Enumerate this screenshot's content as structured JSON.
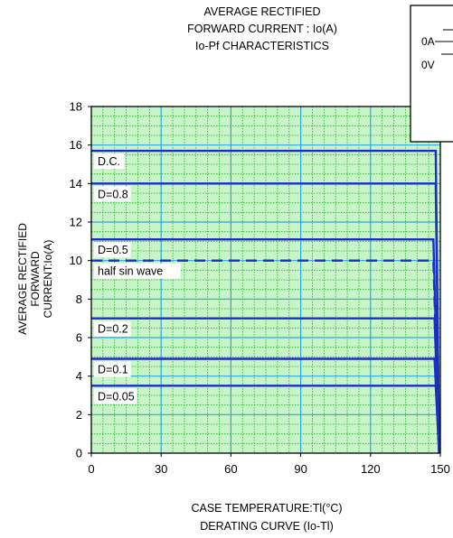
{
  "title": {
    "lines": [
      "AVERAGE RECTIFIED",
      "FORWARD CURRENT : Io(A)",
      "Io-Pf CHARACTERISTICS"
    ]
  },
  "inset": {
    "labels": [
      "0A",
      "0V"
    ]
  },
  "chart_data": {
    "type": "line",
    "xlabel": "CASE TEMPERATURE:Tl(°C)",
    "subtitle": "DERATING  CURVE (Io-Tl)",
    "ylabel_lines": [
      "AVERAGE RECTIFIED",
      "FORWARD CURRENT:Io(A)"
    ],
    "xlim": [
      0,
      150
    ],
    "ylim": [
      0,
      18
    ],
    "xticks": [
      0,
      30,
      60,
      90,
      120,
      150
    ],
    "yticks": [
      0,
      2,
      4,
      6,
      8,
      10,
      12,
      14,
      16,
      18
    ],
    "grid": true,
    "colors": {
      "background": "#c8f5c8",
      "grid_minor": "#22b322",
      "grid_major": "#2aa5e0",
      "series": "#1a2fc8"
    },
    "series": [
      {
        "label": "D.C.",
        "style": "solid",
        "level": 15.7,
        "x": [
          0,
          148,
          148,
          149.5
        ],
        "y": [
          15.7,
          15.7,
          15.7,
          0
        ]
      },
      {
        "label": "D=0.8",
        "style": "solid",
        "level": 14.0,
        "x": [
          0,
          148,
          149.5
        ],
        "y": [
          14.0,
          14.0,
          0
        ]
      },
      {
        "label": "D=0.5",
        "style": "solid",
        "level": 11.1,
        "x": [
          0,
          147,
          149.5
        ],
        "y": [
          11.1,
          11.1,
          0
        ]
      },
      {
        "label": "half sin wave",
        "style": "dashed",
        "level": 10.0,
        "x": [
          0,
          147,
          149.5
        ],
        "y": [
          10.0,
          10.0,
          0
        ]
      },
      {
        "label": "D=0.2",
        "style": "solid",
        "level": 7.0,
        "x": [
          0,
          147.5,
          149.5
        ],
        "y": [
          7.0,
          7.0,
          0
        ]
      },
      {
        "label": "D=0.1",
        "style": "solid",
        "level": 4.9,
        "x": [
          0,
          147.5,
          149.5
        ],
        "y": [
          4.9,
          4.9,
          0
        ]
      },
      {
        "label": "D=0.05",
        "style": "solid",
        "level": 3.5,
        "x": [
          0,
          148,
          149.5
        ],
        "y": [
          3.5,
          3.5,
          0
        ]
      }
    ]
  }
}
